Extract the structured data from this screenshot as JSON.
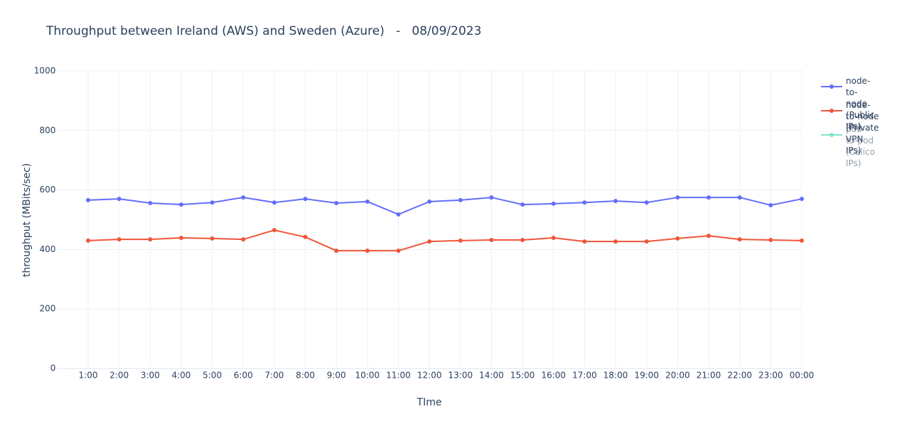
{
  "chart_data": {
    "type": "line",
    "title": "Throughput between Ireland (AWS) and Sweden (Azure)   -   08/09/2023",
    "x_label": "TIme",
    "y_label": "throughput (MBits/sec)",
    "categories": [
      "1:00",
      "2:00",
      "3:00",
      "4:00",
      "5:00",
      "6:00",
      "7:00",
      "8:00",
      "9:00",
      "10:00",
      "11:00",
      "12:00",
      "13:00",
      "14:00",
      "15:00",
      "16:00",
      "17:00",
      "18:00",
      "19:00",
      "20:00",
      "21:00",
      "22:00",
      "23:00",
      "00:00"
    ],
    "series": [
      {
        "name": "node-to-node\n(Public IPs)",
        "color": "#636efa",
        "values": [
          566,
          570,
          556,
          551,
          558,
          575,
          558,
          570,
          556,
          561,
          518,
          561,
          566,
          575,
          551,
          554,
          558,
          563,
          558,
          575,
          575,
          575,
          549,
          570
        ]
      },
      {
        "name": "node-to-node\n(Private VPN IPs)",
        "color": "#ef553b",
        "values": [
          430,
          434,
          434,
          439,
          437,
          434,
          465,
          442,
          396,
          396,
          396,
          427,
          430,
          432,
          432,
          439,
          427,
          427,
          427,
          437,
          446,
          434,
          432,
          430
        ]
      },
      {
        "name": "pod-to-pod\n(Calico IPs)",
        "color": "#00cc96",
        "hidden": true,
        "values": [
          null,
          null,
          null,
          null,
          null,
          null,
          null,
          null,
          null,
          null,
          null,
          null,
          null,
          null,
          null,
          null,
          null,
          null,
          null,
          null,
          null,
          null,
          null,
          null
        ]
      }
    ],
    "ylim": [
      0,
      1000
    ],
    "yticks": [
      0,
      200,
      400,
      600,
      800,
      1000
    ],
    "grid": true,
    "legend": "right"
  }
}
